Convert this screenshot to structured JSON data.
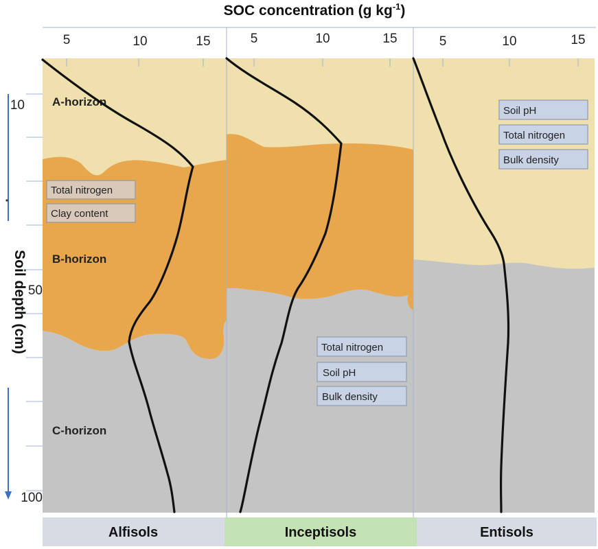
{
  "x_axis": {
    "title": "SOC concentration (g kg",
    "title_sup": "-1",
    "title_close": ")",
    "ticks": [
      "5",
      "10",
      "15"
    ]
  },
  "y_axis": {
    "title": "Soil depth (cm)",
    "ticks": [
      "10",
      "50",
      "100"
    ]
  },
  "horizons": {
    "a": "A-horizon",
    "b": "B-horizon",
    "c": "C-horizon"
  },
  "colors": {
    "a_horizon": "#efe0ae",
    "b_horizon": "#e8a74c",
    "c_horizon": "#c4c4c4",
    "axis_arrow": "#3b6fc4",
    "alfisols_label_bg": "#d6dbe4",
    "inceptisols_label_bg": "#c4e3b4",
    "entisols_label_bg": "#d6dbe4"
  },
  "panels": {
    "alfisols": {
      "name": "Alfisols",
      "factors": [
        "Total nitrogen",
        "Clay content"
      ]
    },
    "inceptisols": {
      "name": "Inceptisols",
      "factors": [
        "Total nitrogen",
        "Soil pH",
        "Bulk density"
      ]
    },
    "entisols": {
      "name": "Entisols",
      "factors": [
        "Soil pH",
        "Total nitrogen",
        "Bulk density"
      ]
    }
  }
}
